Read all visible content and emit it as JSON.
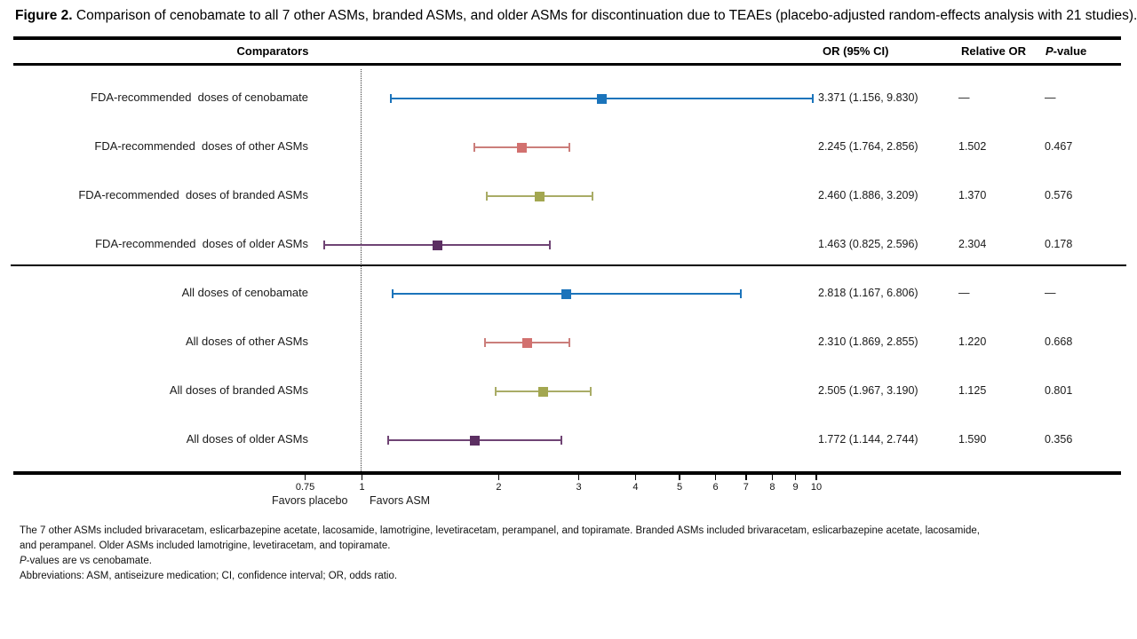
{
  "figure": {
    "label": "Figure 2.",
    "title": "Comparison of cenobamate to all 7 other ASMs, branded ASMs, and older ASMs for discontinuation due to TEAEs (placebo-adjusted random-effects analysis with 21 studies)."
  },
  "table": {
    "comparators_header": "Comparators",
    "or_header": "OR (95% CI)",
    "relative_or_header": "Relative OR",
    "p_header_italic": "P",
    "p_header_rest": "-value"
  },
  "chart_data": {
    "type": "forest",
    "x_scale": "log",
    "x_ticks": [
      0.75,
      1,
      2,
      3,
      4,
      5,
      6,
      7,
      8,
      9,
      10
    ],
    "tick_labels": [
      "0.75",
      "1",
      "2",
      "3",
      "4",
      "5",
      "6",
      "7",
      "8",
      "9",
      "10"
    ],
    "reference_line": 1,
    "favors_left": "Favors placebo",
    "favors_right": "Favors ASM",
    "rows": [
      {
        "label": "FDA-recommended  doses of cenobamate",
        "or": 3.371,
        "ci_low": 1.156,
        "ci_high": 9.83,
        "or_text": "3.371 (1.156, 9.830)",
        "relative_or": "—",
        "p_value": "—",
        "color": "#1B74BB",
        "marker_color": "#1B74BB"
      },
      {
        "label": "FDA-recommended  doses of other ASMs",
        "or": 2.245,
        "ci_low": 1.764,
        "ci_high": 2.856,
        "or_text": "2.245 (1.764, 2.856)",
        "relative_or": "1.502",
        "p_value": "0.467",
        "color": "#CB7E7B",
        "marker_color": "#D2716F"
      },
      {
        "label": "FDA-recommended  doses of branded ASMs",
        "or": 2.46,
        "ci_low": 1.886,
        "ci_high": 3.209,
        "or_text": "2.460 (1.886, 3.209)",
        "relative_or": "1.370",
        "p_value": "0.576",
        "color": "#A9AC66",
        "marker_color": "#A3A750"
      },
      {
        "label": "FDA-recommended  doses of older ASMs",
        "or": 1.463,
        "ci_low": 0.825,
        "ci_high": 2.596,
        "or_text": "1.463 (0.825, 2.596)",
        "relative_or": "2.304",
        "p_value": "0.178",
        "color": "#6F4474",
        "marker_color": "#5C2F62"
      },
      {
        "label": "All doses of cenobamate",
        "or": 2.818,
        "ci_low": 1.167,
        "ci_high": 6.806,
        "or_text": "2.818 (1.167, 6.806)",
        "relative_or": "—",
        "p_value": "—",
        "color": "#1B74BB",
        "marker_color": "#1B74BB"
      },
      {
        "label": "All doses of other ASMs",
        "or": 2.31,
        "ci_low": 1.869,
        "ci_high": 2.855,
        "or_text": "2.310 (1.869, 2.855)",
        "relative_or": "1.220",
        "p_value": "0.668",
        "color": "#CB7E7B",
        "marker_color": "#D2716F"
      },
      {
        "label": "All doses of branded ASMs",
        "or": 2.505,
        "ci_low": 1.967,
        "ci_high": 3.19,
        "or_text": "2.505 (1.967, 3.190)",
        "relative_or": "1.125",
        "p_value": "0.801",
        "color": "#A9AC66",
        "marker_color": "#A3A750"
      },
      {
        "label": "All doses of older ASMs",
        "or": 1.772,
        "ci_low": 1.144,
        "ci_high": 2.744,
        "or_text": "1.772 (1.144, 2.744)",
        "relative_or": "1.590",
        "p_value": "0.356",
        "color": "#6F4474",
        "marker_color": "#5C2F62"
      }
    ]
  },
  "footnotes": {
    "line1": "The 7 other ASMs included brivaracetam, eslicarbazepine acetate, lacosamide, lamotrigine, levetiracetam, perampanel, and topiramate. Branded ASMs included brivaracetam, eslicarbazepine acetate, lacosamide,",
    "line2": "and perampanel. Older ASMs included lamotrigine, levetiracetam, and topiramate.",
    "p_italic": "P",
    "p_rest": "-values are vs cenobamate.",
    "line4": "Abbreviations: ASM,  antiseizure medication; CI, confidence interval; OR,  odds ratio."
  }
}
